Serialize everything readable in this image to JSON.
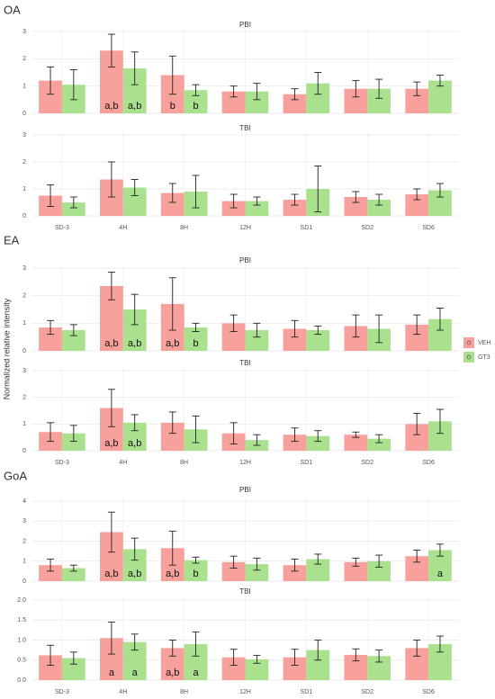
{
  "sections": [
    "OA",
    "EA",
    "GoA"
  ],
  "y_label": "Normalized relative intensity",
  "chart_data": [
    {
      "type": "bar",
      "title": "PBI",
      "ylim": [
        0,
        3
      ],
      "yticks": [
        0,
        1,
        2,
        3
      ],
      "series": [
        {
          "name": "VEH",
          "color": "#f8a19c",
          "values": [
            1.2,
            2.3,
            1.4,
            0.8,
            0.7,
            0.9,
            0.9
          ],
          "errors": [
            0.5,
            0.6,
            0.7,
            0.2,
            0.2,
            0.3,
            0.25
          ],
          "labels": [
            null,
            "a,b",
            "b",
            null,
            null,
            null,
            null
          ]
        },
        {
          "name": "GT3",
          "color": "#aae18f",
          "values": [
            1.05,
            1.65,
            0.85,
            0.8,
            1.1,
            0.9,
            1.2
          ],
          "errors": [
            0.55,
            0.6,
            0.2,
            0.3,
            0.4,
            0.35,
            0.2
          ],
          "labels": [
            null,
            "a,b",
            "b",
            null,
            null,
            null,
            null
          ]
        }
      ]
    },
    {
      "type": "bar",
      "title": "TBI",
      "categories": [
        "SD-3",
        "4H",
        "8H",
        "12H",
        "SD1",
        "SD2",
        "SD6"
      ],
      "ylim": [
        0,
        3
      ],
      "yticks": [
        0,
        1,
        2,
        3
      ],
      "series": [
        {
          "name": "VEH",
          "color": "#f8a19c",
          "values": [
            0.75,
            1.35,
            0.85,
            0.55,
            0.6,
            0.7,
            0.8
          ],
          "errors": [
            0.4,
            0.65,
            0.35,
            0.25,
            0.2,
            0.2,
            0.2
          ]
        },
        {
          "name": "GT3",
          "color": "#aae18f",
          "values": [
            0.5,
            1.05,
            0.9,
            0.55,
            1.0,
            0.6,
            0.95
          ],
          "errors": [
            0.2,
            0.3,
            0.6,
            0.15,
            0.85,
            0.2,
            0.25
          ]
        }
      ]
    },
    {
      "type": "bar",
      "title": "PBI",
      "ylim": [
        0,
        3
      ],
      "yticks": [
        0,
        1,
        2,
        3
      ],
      "series": [
        {
          "name": "VEH",
          "color": "#f8a19c",
          "values": [
            0.85,
            2.35,
            1.7,
            1.0,
            0.8,
            0.9,
            0.95
          ],
          "errors": [
            0.25,
            0.5,
            0.95,
            0.3,
            0.3,
            0.4,
            0.35
          ],
          "labels": [
            null,
            "a,b",
            "a,b",
            null,
            null,
            null,
            null
          ]
        },
        {
          "name": "GT3",
          "color": "#aae18f",
          "values": [
            0.75,
            1.5,
            0.85,
            0.75,
            0.75,
            0.8,
            1.15
          ],
          "errors": [
            0.2,
            0.55,
            0.15,
            0.25,
            0.15,
            0.5,
            0.4
          ],
          "labels": [
            null,
            "a,b",
            "b",
            null,
            null,
            null,
            null
          ]
        }
      ]
    },
    {
      "type": "bar",
      "title": "TBI",
      "categories": [
        "SD-3",
        "4H",
        "8H",
        "12H",
        "SD1",
        "SD2",
        "SD6"
      ],
      "ylim": [
        0,
        3
      ],
      "yticks": [
        0,
        1,
        2,
        3
      ],
      "series": [
        {
          "name": "VEH",
          "color": "#f8a19c",
          "values": [
            0.7,
            1.6,
            1.05,
            0.65,
            0.6,
            0.6,
            1.0
          ],
          "errors": [
            0.35,
            0.7,
            0.4,
            0.4,
            0.25,
            0.1,
            0.4
          ],
          "labels": [
            null,
            "a,b",
            null,
            null,
            null,
            null,
            null
          ]
        },
        {
          "name": "GT3",
          "color": "#aae18f",
          "values": [
            0.65,
            1.05,
            0.8,
            0.4,
            0.55,
            0.45,
            1.1
          ],
          "errors": [
            0.3,
            0.3,
            0.5,
            0.2,
            0.2,
            0.15,
            0.45
          ],
          "labels": [
            null,
            "a,b",
            null,
            null,
            null,
            null,
            null
          ]
        }
      ]
    },
    {
      "type": "bar",
      "title": "PBI",
      "ylim": [
        0,
        4
      ],
      "yticks": [
        0,
        1,
        2,
        3,
        4
      ],
      "series": [
        {
          "name": "VEH",
          "color": "#f8a19c",
          "values": [
            0.8,
            2.45,
            1.65,
            0.95,
            0.8,
            0.95,
            1.25
          ],
          "errors": [
            0.3,
            1.0,
            0.85,
            0.3,
            0.3,
            0.2,
            0.3
          ],
          "labels": [
            null,
            "a,b",
            "a,b",
            null,
            null,
            null,
            null
          ]
        },
        {
          "name": "GT3",
          "color": "#aae18f",
          "values": [
            0.65,
            1.6,
            1.05,
            0.85,
            1.1,
            1.0,
            1.55
          ],
          "errors": [
            0.15,
            0.55,
            0.15,
            0.3,
            0.25,
            0.3,
            0.3
          ],
          "labels": [
            null,
            "a,b",
            "b",
            null,
            null,
            null,
            "a"
          ]
        }
      ]
    },
    {
      "type": "bar",
      "title": "TBI",
      "categories": [
        "SD-3",
        "4H",
        "8H",
        "12H",
        "SD1",
        "SD2",
        "SD6"
      ],
      "ylim": [
        0,
        2
      ],
      "yticks": [
        {
          "value": 0,
          "label": "0.0"
        },
        {
          "value": 0.5,
          "label": "0.5"
        },
        {
          "value": 1,
          "label": "1.0"
        },
        {
          "value": 1.5,
          "label": "1.5"
        },
        {
          "value": 2,
          "label": "2.0"
        }
      ],
      "series": [
        {
          "name": "VEH",
          "color": "#f8a19c",
          "values": [
            0.62,
            1.05,
            0.8,
            0.57,
            0.57,
            0.63,
            0.8
          ],
          "errors": [
            0.25,
            0.4,
            0.2,
            0.2,
            0.2,
            0.15,
            0.2
          ],
          "labels": [
            null,
            "a",
            "a,b",
            null,
            null,
            null,
            null
          ]
        },
        {
          "name": "GT3",
          "color": "#aae18f",
          "values": [
            0.55,
            0.95,
            0.9,
            0.52,
            0.75,
            0.6,
            0.9
          ],
          "errors": [
            0.15,
            0.2,
            0.3,
            0.1,
            0.25,
            0.15,
            0.2
          ],
          "labels": [
            null,
            "a",
            "a",
            null,
            null,
            null,
            null
          ]
        }
      ]
    }
  ]
}
